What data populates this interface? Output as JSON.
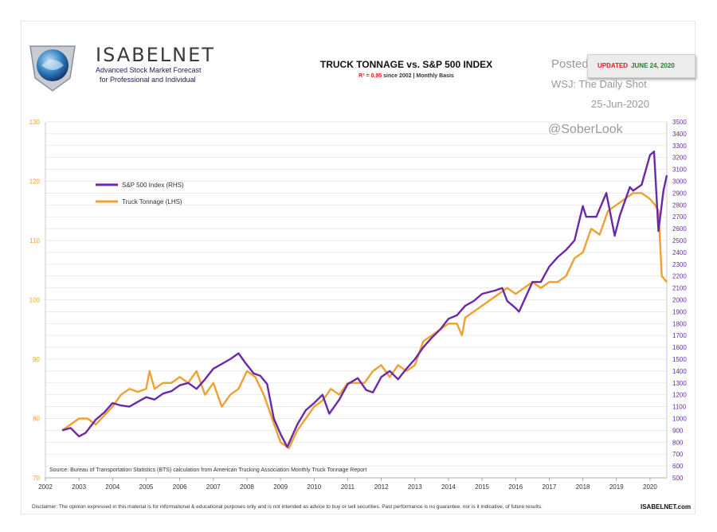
{
  "brand": {
    "name": "ISABELNET",
    "tagline_line1": "Advanced Stock Market Forecast",
    "tagline_line2": "for Professional and Individual",
    "website": "ISABELNET.com"
  },
  "badge": {
    "prefix": "UPDATED",
    "date": "JUNE 24, 2020"
  },
  "overlay": {
    "posted": "Posted on",
    "source_line": "WSJ: The Daily Shot",
    "date": "25-Jun-2020",
    "handle": "@SoberLook"
  },
  "footer": {
    "source": "Source: Bureau of Transportation Statistics (BTS) calculation from American Trucking Association Monthly Truck Tonnage Report",
    "disclaimer": "Disclaimer: The opinion expressed in this material is for informational & educational purposes only and is not intended as advice to buy or sell securities. Past performance is no guarantee, nor is it indicative, of future results."
  },
  "colors": {
    "sp500": "#6a2aa8",
    "truck": "#f0a030",
    "grid": "#e3e3e3",
    "axis_left": "#f0a030",
    "axis_right": "#6a2aa8"
  },
  "chart_data": {
    "type": "line",
    "title": "TRUCK TONNAGE vs. S&P 500 INDEX",
    "subtitle_r2": "R² = 0.95",
    "subtitle_rest": "since 2002 | Monthly Basis",
    "x_ticks": [
      "2002",
      "2003",
      "2004",
      "2005",
      "2006",
      "2007",
      "2008",
      "2009",
      "2010",
      "2011",
      "2012",
      "2013",
      "2014",
      "2015",
      "2016",
      "2017",
      "2018",
      "2019",
      "2020"
    ],
    "xlim": [
      2002,
      2020.5
    ],
    "left_axis": {
      "label": "",
      "ylim": [
        70,
        130
      ],
      "ticks": [
        70,
        80,
        90,
        100,
        110,
        120,
        130
      ]
    },
    "right_axis": {
      "label": "",
      "ylim": [
        500,
        3500
      ],
      "ticks": [
        500,
        600,
        700,
        800,
        900,
        1000,
        1100,
        1200,
        1300,
        1400,
        1500,
        1600,
        1700,
        1800,
        1900,
        2000,
        2100,
        2200,
        2300,
        2400,
        2500,
        2600,
        2700,
        2800,
        2900,
        3000,
        3100,
        3200,
        3300,
        3400,
        3500
      ]
    },
    "legend": {
      "placement": "upper-left"
    },
    "series": [
      {
        "name": "S&P 500 Index (RHS)",
        "axis": "right",
        "x": [
          2002.5,
          2002.75,
          2003.0,
          2003.2,
          2003.5,
          2003.75,
          2004.0,
          2004.25,
          2004.5,
          2004.75,
          2005.0,
          2005.25,
          2005.5,
          2005.75,
          2006.0,
          2006.25,
          2006.5,
          2006.75,
          2007.0,
          2007.25,
          2007.5,
          2007.75,
          2007.95,
          2008.2,
          2008.4,
          2008.6,
          2008.8,
          2009.0,
          2009.2,
          2009.5,
          2009.75,
          2010.0,
          2010.25,
          2010.45,
          2010.75,
          2011.0,
          2011.3,
          2011.55,
          2011.75,
          2012.0,
          2012.25,
          2012.5,
          2012.75,
          2013.0,
          2013.25,
          2013.5,
          2013.75,
          2014.0,
          2014.25,
          2014.5,
          2014.75,
          2015.0,
          2015.4,
          2015.6,
          2015.75,
          2016.0,
          2016.1,
          2016.5,
          2016.75,
          2017.0,
          2017.25,
          2017.5,
          2017.75,
          2018.0,
          2018.1,
          2018.4,
          2018.7,
          2018.95,
          2019.1,
          2019.4,
          2019.5,
          2019.75,
          2020.0,
          2020.12,
          2020.25,
          2020.4,
          2020.5
        ],
        "y": [
          900,
          920,
          850,
          880,
          990,
          1050,
          1130,
          1110,
          1100,
          1140,
          1180,
          1160,
          1210,
          1230,
          1280,
          1300,
          1250,
          1330,
          1420,
          1460,
          1500,
          1550,
          1470,
          1380,
          1360,
          1290,
          1000,
          870,
          760,
          950,
          1070,
          1130,
          1200,
          1040,
          1160,
          1290,
          1340,
          1240,
          1220,
          1350,
          1400,
          1330,
          1420,
          1500,
          1600,
          1680,
          1750,
          1840,
          1870,
          1950,
          1990,
          2050,
          2080,
          2100,
          1990,
          1930,
          1900,
          2150,
          2150,
          2280,
          2360,
          2420,
          2500,
          2790,
          2700,
          2700,
          2900,
          2540,
          2710,
          2950,
          2920,
          2970,
          3220,
          3250,
          2580,
          2920,
          3050
        ]
      },
      {
        "name": "Truck Tonnage (LHS)",
        "axis": "left",
        "x": [
          2002.5,
          2002.75,
          2003.0,
          2003.25,
          2003.5,
          2003.75,
          2004.0,
          2004.25,
          2004.5,
          2004.75,
          2005.0,
          2005.1,
          2005.25,
          2005.5,
          2005.75,
          2006.0,
          2006.25,
          2006.5,
          2006.75,
          2007.0,
          2007.25,
          2007.5,
          2007.75,
          2008.0,
          2008.25,
          2008.5,
          2008.75,
          2009.0,
          2009.25,
          2009.5,
          2009.75,
          2010.0,
          2010.25,
          2010.5,
          2010.75,
          2011.0,
          2011.25,
          2011.5,
          2011.75,
          2012.0,
          2012.25,
          2012.5,
          2012.75,
          2013.0,
          2013.25,
          2013.5,
          2013.75,
          2014.0,
          2014.25,
          2014.4,
          2014.5,
          2014.75,
          2015.0,
          2015.25,
          2015.5,
          2015.75,
          2016.0,
          2016.25,
          2016.5,
          2016.75,
          2017.0,
          2017.25,
          2017.5,
          2017.75,
          2018.0,
          2018.25,
          2018.5,
          2018.75,
          2019.0,
          2019.25,
          2019.5,
          2019.75,
          2020.0,
          2020.15,
          2020.25,
          2020.35,
          2020.5
        ],
        "y": [
          78,
          79,
          80,
          80,
          79,
          80.5,
          82,
          84,
          85,
          84.5,
          85,
          88,
          85,
          86,
          86,
          87,
          86,
          88,
          84,
          86,
          82,
          84,
          85,
          88,
          87,
          84,
          80,
          76,
          75,
          78,
          80,
          82,
          83,
          85,
          84,
          86,
          86,
          86,
          88,
          89,
          87,
          89,
          88,
          89,
          93,
          94,
          95,
          96,
          96,
          94,
          97,
          98,
          99,
          100,
          101,
          102,
          101,
          102,
          103,
          102,
          103,
          103,
          104,
          107,
          108,
          112,
          111,
          115,
          116,
          117,
          118,
          118,
          117,
          116,
          115,
          104,
          103
        ]
      }
    ]
  }
}
